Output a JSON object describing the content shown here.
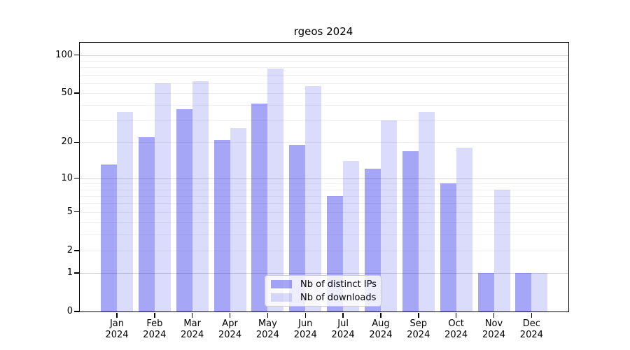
{
  "title": "rgeos 2024",
  "chart_data": {
    "type": "bar",
    "title": "rgeos 2024",
    "categories": [
      {
        "month": "Jan",
        "year": "2024"
      },
      {
        "month": "Feb",
        "year": "2024"
      },
      {
        "month": "Mar",
        "year": "2024"
      },
      {
        "month": "Apr",
        "year": "2024"
      },
      {
        "month": "May",
        "year": "2024"
      },
      {
        "month": "Jun",
        "year": "2024"
      },
      {
        "month": "Jul",
        "year": "2024"
      },
      {
        "month": "Aug",
        "year": "2024"
      },
      {
        "month": "Sep",
        "year": "2024"
      },
      {
        "month": "Oct",
        "year": "2024"
      },
      {
        "month": "Nov",
        "year": "2024"
      },
      {
        "month": "Dec",
        "year": "2024"
      }
    ],
    "series": [
      {
        "name": "Nb of distinct IPs",
        "color": "rgba(0,0,230,0.35)",
        "values": [
          13,
          22,
          37,
          21,
          41,
          19,
          7,
          12,
          17,
          9,
          1,
          1
        ]
      },
      {
        "name": "Nb of downloads",
        "color": "rgba(0,0,230,0.14)",
        "values": [
          35,
          60,
          62,
          26,
          78,
          57,
          14,
          30,
          35,
          18,
          8,
          1
        ]
      }
    ],
    "y_scale": "log1p",
    "ylim": [
      0,
      125
    ],
    "y_ticks": [
      0,
      1,
      2,
      5,
      10,
      20,
      50,
      100
    ],
    "y_gridlines": {
      "major": [
        1,
        10,
        100
      ],
      "minor": [
        2,
        3,
        4,
        5,
        6,
        7,
        8,
        9,
        20,
        30,
        40,
        50,
        60,
        70,
        80,
        90
      ]
    },
    "grid": true,
    "legend_position": "bottom-center",
    "axis_color": "#000000",
    "major_grid_color": "#d4d4d4",
    "minor_grid_color": "#f0f0f0"
  },
  "legend": {
    "items": [
      {
        "label": "Nb of distinct IPs"
      },
      {
        "label": "Nb of downloads"
      }
    ]
  }
}
